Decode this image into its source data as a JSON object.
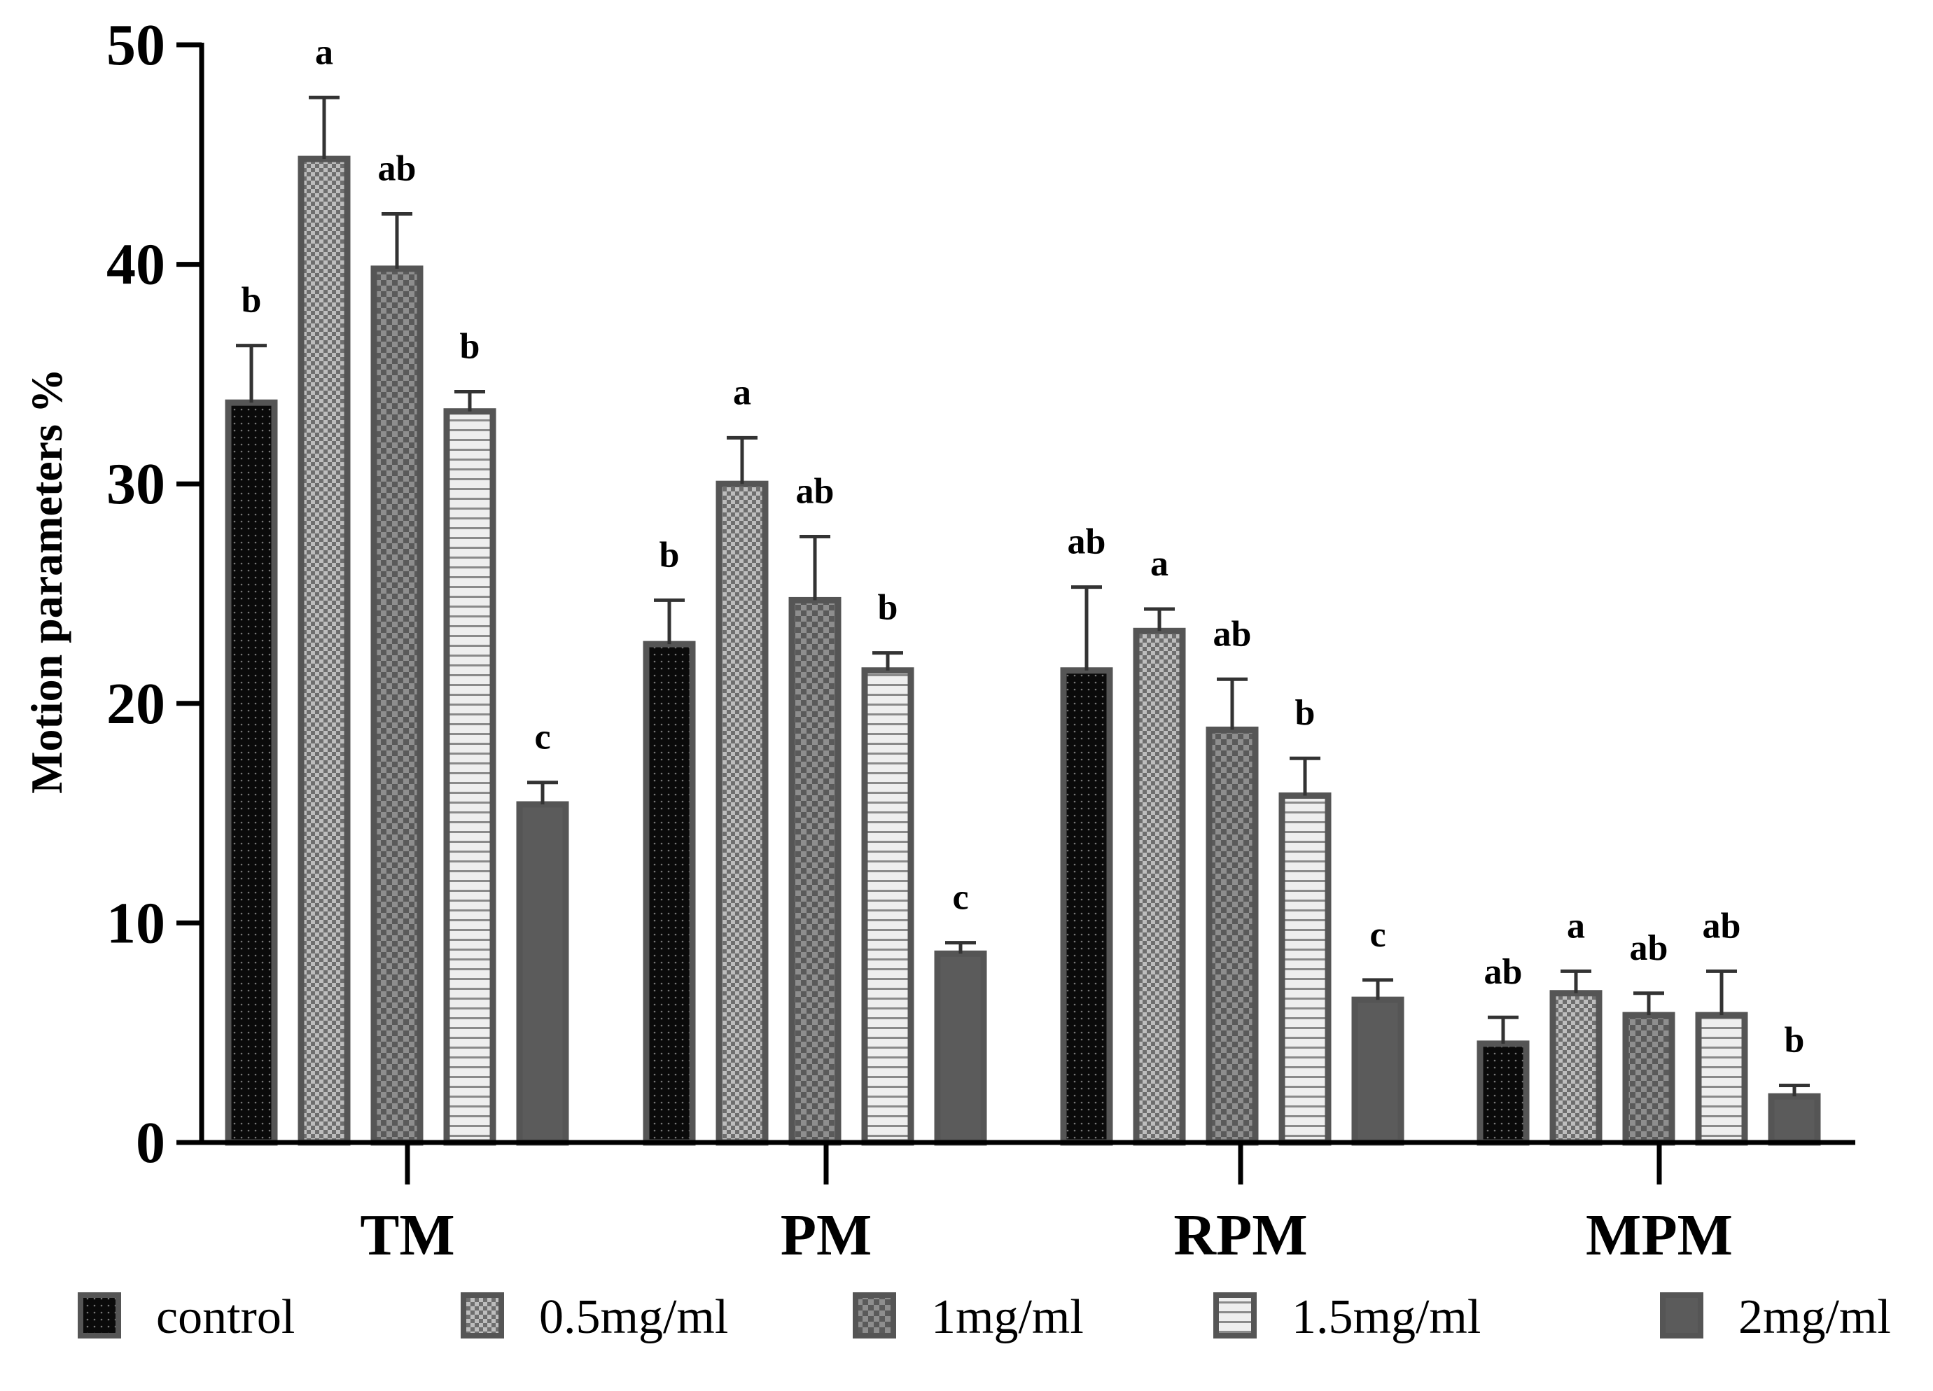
{
  "chart_data": {
    "type": "bar",
    "title": "",
    "xlabel": "",
    "ylabel": "Motion parameters %",
    "ylim": [
      0,
      50
    ],
    "yticks": [
      0,
      10,
      20,
      30,
      40,
      50
    ],
    "grid": false,
    "legend_position": "bottom",
    "categories": [
      "TM",
      "PM",
      "RPM",
      "MPM"
    ],
    "series": [
      {
        "name": "control",
        "pattern": "dots",
        "color": "#111111",
        "values": [
          33.7,
          22.7,
          21.5,
          4.5
        ],
        "errors": [
          2.6,
          2.0,
          3.8,
          1.2
        ],
        "labels": [
          "b",
          "b",
          "ab",
          "ab"
        ]
      },
      {
        "name": "0.5mg/ml",
        "pattern": "fine-check",
        "color": "#8a8a8a",
        "values": [
          44.8,
          30.0,
          23.3,
          6.8
        ],
        "errors": [
          2.8,
          2.1,
          1.0,
          1.0
        ],
        "labels": [
          "a",
          "a",
          "a",
          "a"
        ]
      },
      {
        "name": "1mg/ml",
        "pattern": "coarse-check",
        "color": "#6f6f6f",
        "values": [
          39.8,
          24.7,
          18.8,
          5.8
        ],
        "errors": [
          2.5,
          2.9,
          2.3,
          1.0
        ],
        "labels": [
          "ab",
          "ab",
          "ab",
          "ab"
        ]
      },
      {
        "name": "1.5mg/ml",
        "pattern": "horizontal-lines",
        "color": "#e6e6e6",
        "values": [
          33.3,
          21.5,
          15.8,
          5.8
        ],
        "errors": [
          0.9,
          0.8,
          1.7,
          2.0
        ],
        "labels": [
          "b",
          "b",
          "b",
          "ab"
        ]
      },
      {
        "name": "2mg/ml",
        "pattern": "solid",
        "color": "#5b5b5b",
        "values": [
          15.4,
          8.6,
          6.5,
          2.1
        ],
        "errors": [
          1.0,
          0.5,
          0.9,
          0.5
        ],
        "labels": [
          "c",
          "c",
          "c",
          "b"
        ]
      }
    ]
  }
}
